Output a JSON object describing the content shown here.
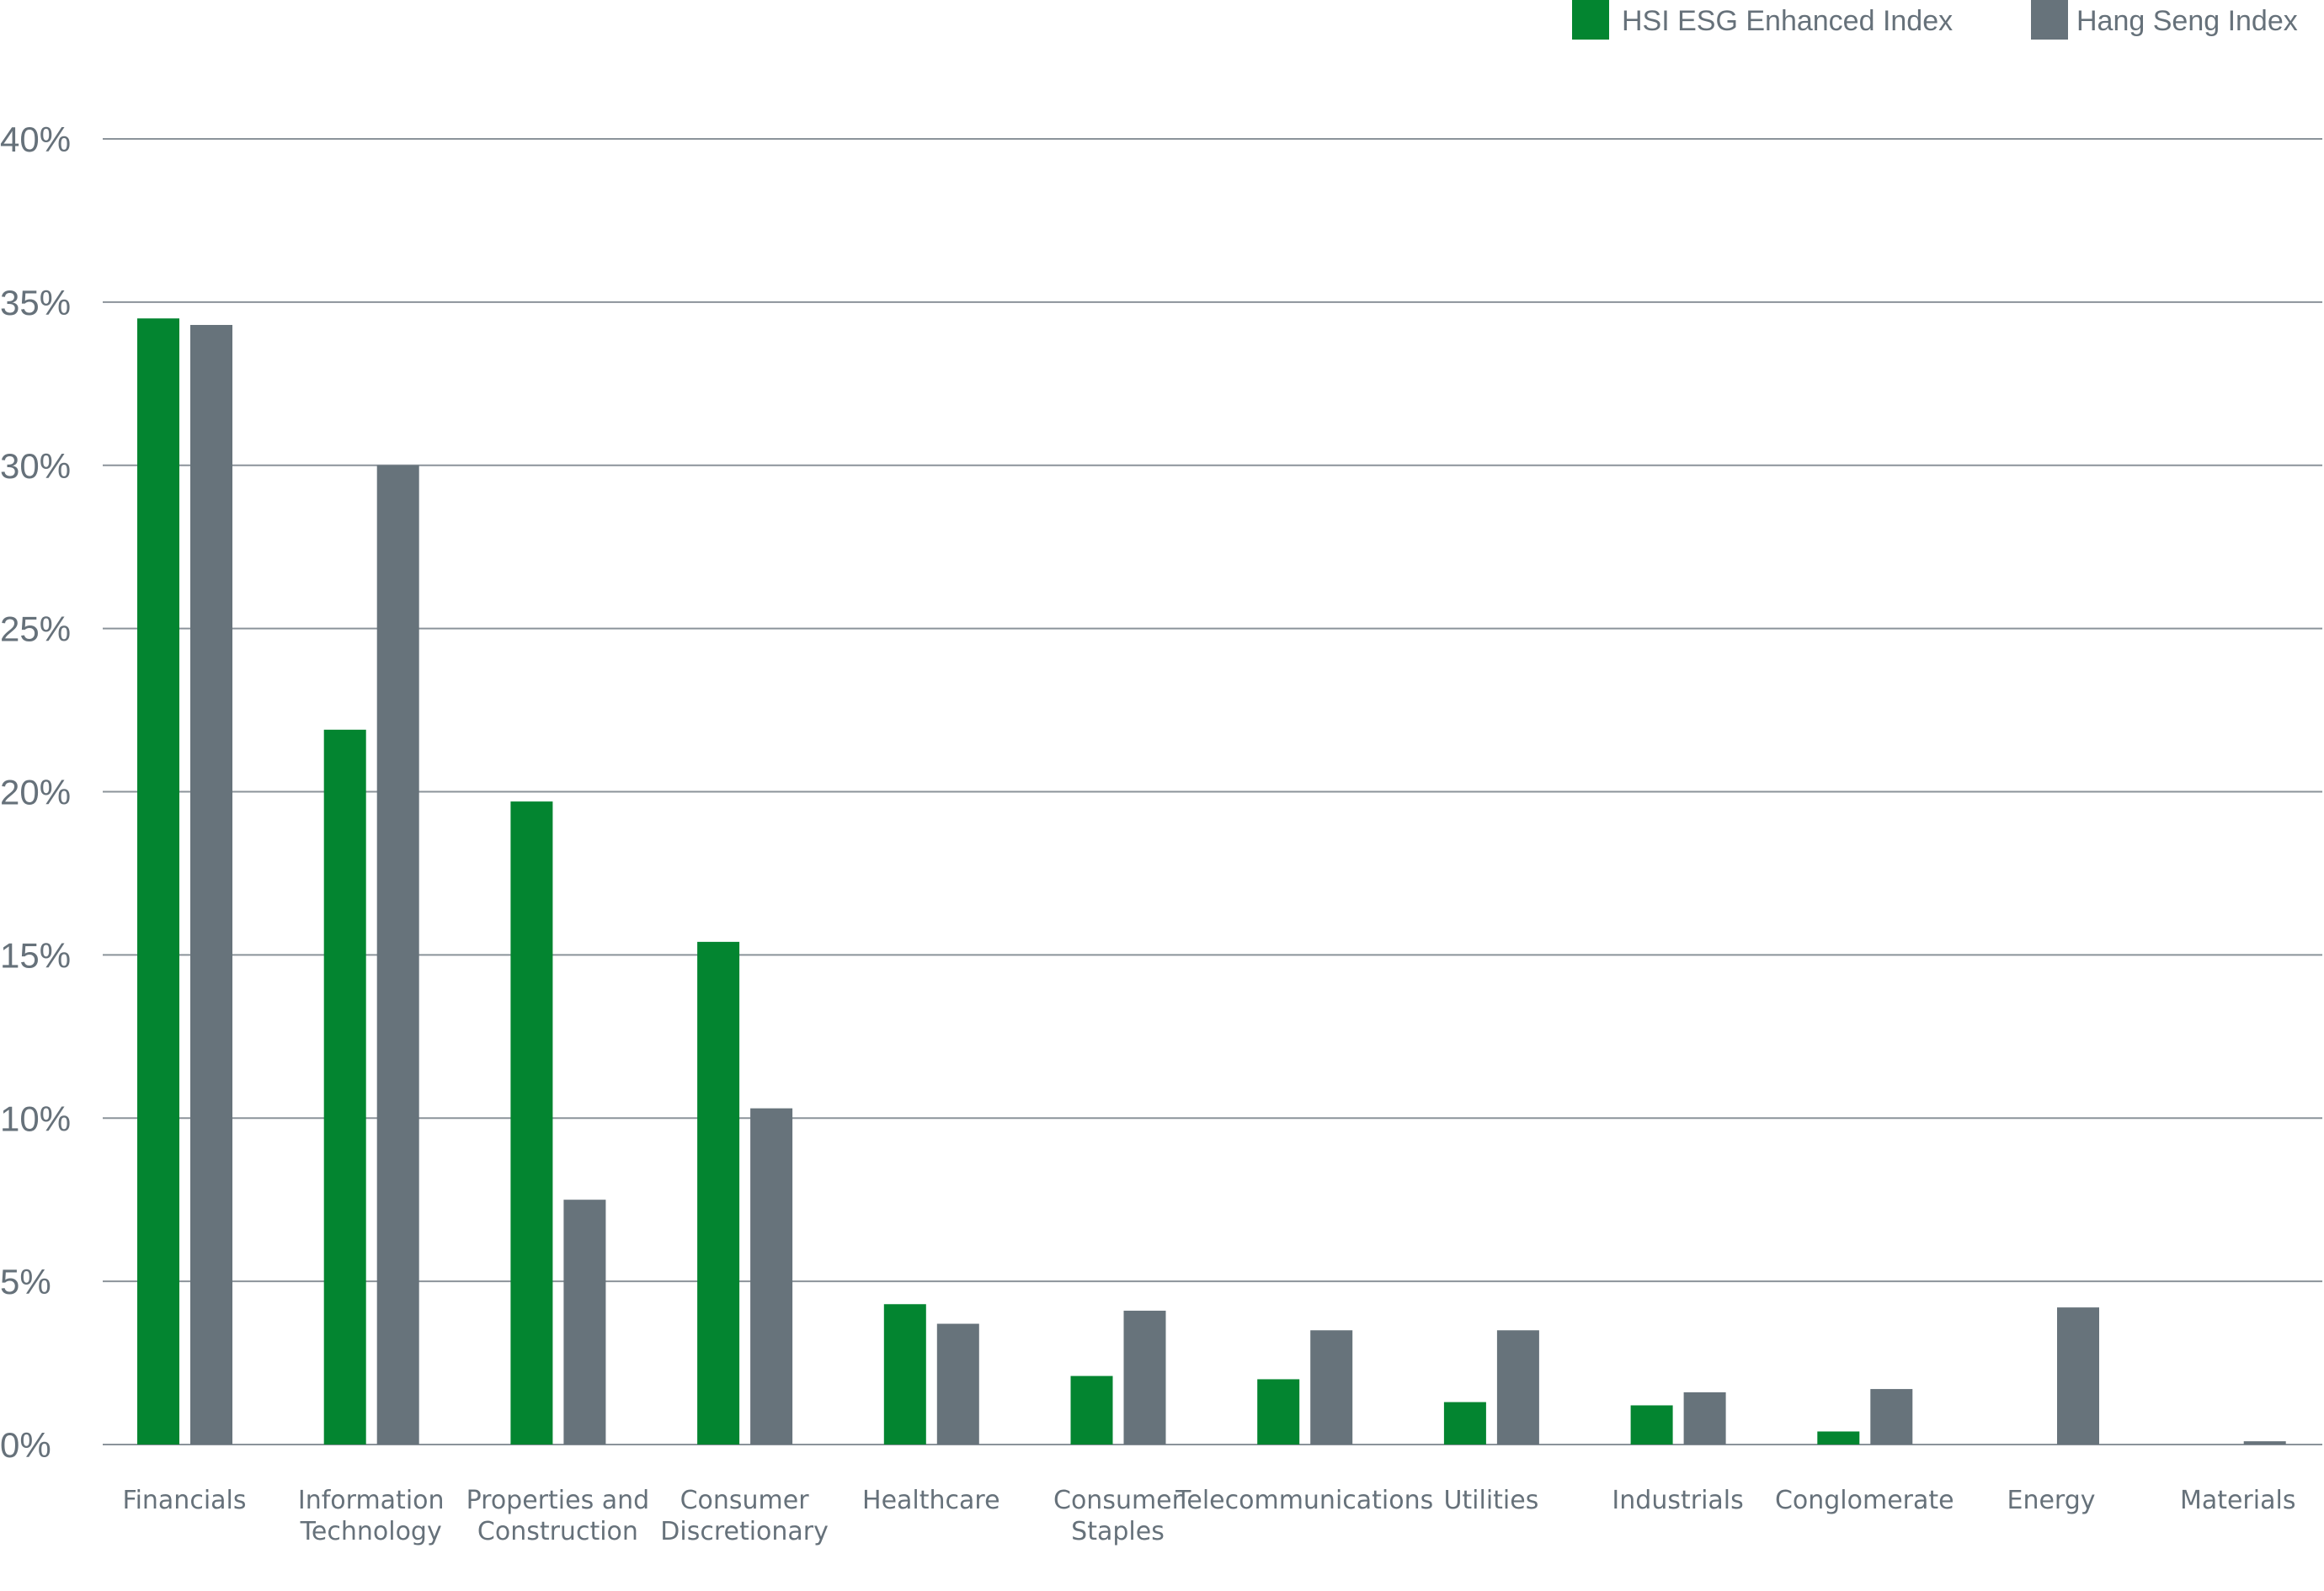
{
  "chart_data": {
    "type": "bar",
    "title": "",
    "xlabel": "",
    "ylabel": "",
    "ylim": [
      0,
      40
    ],
    "y_ticks": [
      "0%",
      "5%",
      "10%",
      "15%",
      "20%",
      "25%",
      "30%",
      "35%",
      "40%"
    ],
    "y_tick_values": [
      0,
      5,
      10,
      15,
      20,
      25,
      30,
      35,
      40
    ],
    "grid": true,
    "legend_position": "top-right",
    "categories": [
      [
        "Financials"
      ],
      [
        "Information",
        "Technology"
      ],
      [
        "Properties and",
        "Construction"
      ],
      [
        "Consumer",
        "Discretionary"
      ],
      [
        "Healthcare"
      ],
      [
        "Consumer",
        "Staples"
      ],
      [
        "Telecommunications"
      ],
      [
        "Utilities"
      ],
      [
        "Industrials"
      ],
      [
        "Conglomerate"
      ],
      [
        "Energy"
      ],
      [
        "Materials"
      ]
    ],
    "series": [
      {
        "name": "HSI ESG Enhanced Index",
        "color": "#038530",
        "values": [
          34.5,
          21.9,
          19.7,
          15.4,
          4.3,
          2.1,
          2.0,
          1.3,
          1.2,
          0.4,
          0,
          0
        ]
      },
      {
        "name": "Hang Seng Index",
        "color": "#67737b",
        "values": [
          34.3,
          30.0,
          7.5,
          10.3,
          3.7,
          4.1,
          3.5,
          3.5,
          1.6,
          1.7,
          4.2,
          0.1
        ]
      }
    ]
  },
  "colors": {
    "axis_text": "#66717a",
    "gridline": "#8b939a"
  }
}
